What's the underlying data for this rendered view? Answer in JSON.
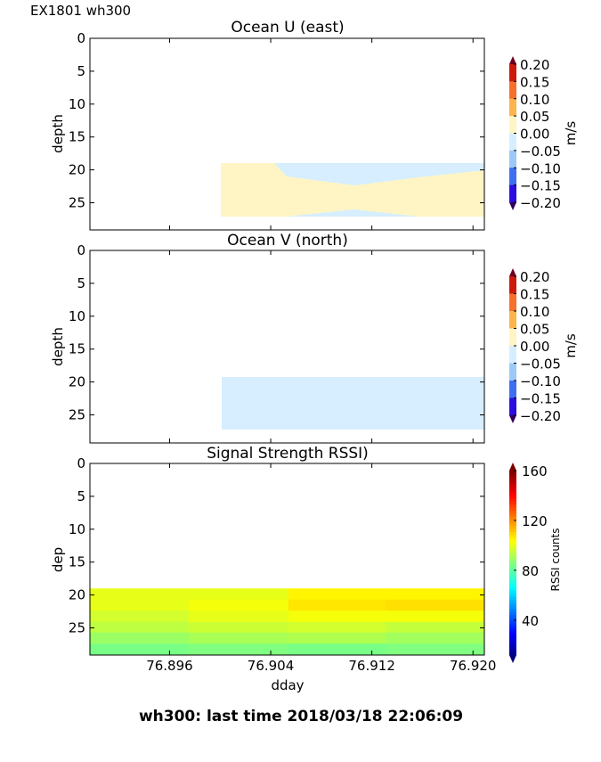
{
  "figure": {
    "corner_label": "EX1801 wh300",
    "suptitle": "wh300: last time 2018/03/18 22:06:09"
  },
  "chart_data": [
    {
      "type": "contour",
      "title": "Ocean U (east)",
      "xlabel": "",
      "ylabel": "depth",
      "xlim": [
        76.8897,
        76.9209
      ],
      "ylim": [
        29,
        0
      ],
      "yticks": [
        0,
        5,
        10,
        15,
        20,
        25
      ],
      "colorbar": {
        "label": "m/s",
        "ticks": [
          "0.20",
          "0.15",
          "0.10",
          "0.05",
          "0.00",
          "−0.05",
          "−0.10",
          "−0.15",
          "−0.20"
        ],
        "colors": [
          "#cc1a0c",
          "#f5702a",
          "#fdb44c",
          "#fff5c4",
          "#d6eeff",
          "#9cc9f7",
          "#3e6ff2",
          "#2a0ee0"
        ],
        "extend_top": "#700020",
        "extend_bottom": "#30005c"
      },
      "regions": [
        {
          "range": "0.00 to 0.05",
          "color": "#fff5c4",
          "depth": [
            19,
            27.2
          ],
          "dday": [
            76.8999,
            76.9209
          ]
        },
        {
          "range": "-0.05 to 0.00",
          "color": "#d6eeff",
          "description_depth_top": [
            19,
            22.4
          ],
          "dday": [
            76.904,
            76.9209
          ]
        }
      ]
    },
    {
      "type": "contour",
      "title": "Ocean V (north)",
      "xlabel": "",
      "ylabel": "depth",
      "xlim": [
        76.8897,
        76.9209
      ],
      "ylim": [
        29,
        0
      ],
      "yticks": [
        0,
        5,
        10,
        15,
        20,
        25
      ],
      "colorbar": {
        "label": "m/s",
        "ticks": [
          "0.20",
          "0.15",
          "0.10",
          "0.05",
          "0.00",
          "−0.05",
          "−0.10",
          "−0.15",
          "−0.20"
        ]
      },
      "regions": [
        {
          "range": "-0.05 to 0.00",
          "color": "#d6eeff",
          "depth": [
            19,
            27.2
          ],
          "dday": [
            76.8999,
            76.9209
          ]
        }
      ]
    },
    {
      "type": "heatmap",
      "title": "Signal Strength RSSI)",
      "xlabel": "dday",
      "ylabel": "dep",
      "xlim": [
        76.8897,
        76.9209
      ],
      "ylim": [
        29,
        0
      ],
      "yticks": [
        0,
        5,
        10,
        15,
        20,
        25
      ],
      "xticks": [
        "76.896",
        "76.904",
        "76.912",
        "76.920"
      ],
      "colormap": "jet",
      "clim": [
        12,
        160
      ],
      "colorbar": {
        "label": "RSSI counts",
        "ticks": [
          "160",
          "120",
          "80",
          "40"
        ]
      },
      "x_edges": [
        76.8897,
        76.8975,
        76.9054,
        76.9131,
        76.9209
      ],
      "y_edges": [
        19,
        20.7,
        22.4,
        24.1,
        25.7,
        27.4,
        29
      ],
      "values": [
        [
          101,
          101,
          106,
          106
        ],
        [
          101,
          103,
          108,
          109
        ],
        [
          98,
          101,
          103,
          103
        ],
        [
          95,
          97,
          98,
          96
        ],
        [
          90,
          92,
          93,
          91
        ],
        [
          85,
          86,
          85,
          86
        ]
      ]
    }
  ]
}
